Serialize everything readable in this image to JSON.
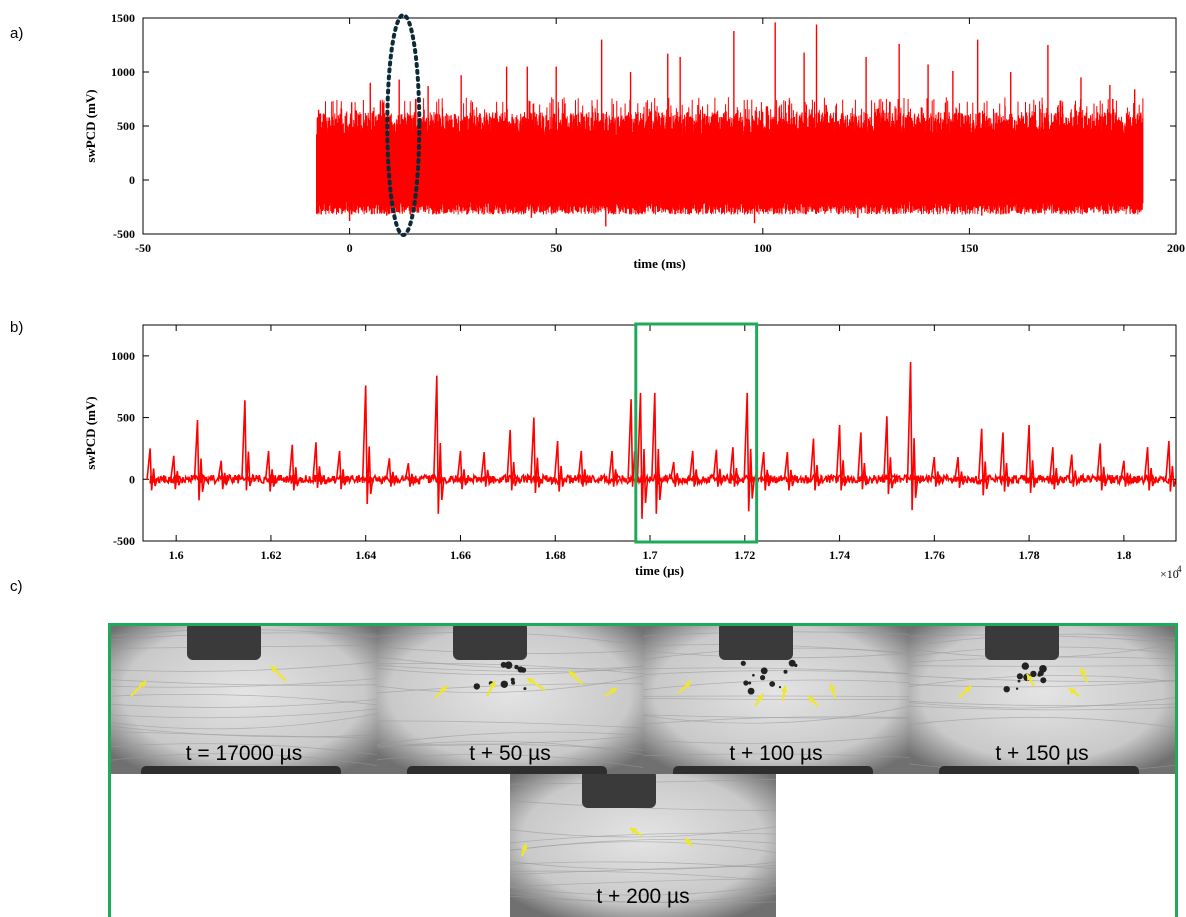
{
  "labels": {
    "a": "a)",
    "b": "b)",
    "c": "c)"
  },
  "chart_data": [
    {
      "type": "line",
      "panel": "a",
      "xlabel": "time (ms)",
      "ylabel": "swPCD (mV)",
      "xlim": [
        -50,
        200
      ],
      "ylim": [
        -500,
        1500
      ],
      "xticks": [
        -50,
        0,
        50,
        100,
        150,
        200
      ],
      "yticks": [
        -500,
        0,
        500,
        1000,
        1500
      ],
      "xtick_labels": [
        "-50",
        "0",
        "50",
        "100",
        "150",
        "200"
      ],
      "ytick_labels": [
        "-500",
        "0",
        "500",
        "1000",
        "1500"
      ],
      "signal_range_x": [
        -8,
        192
      ],
      "baseline_band": [
        -200,
        400
      ],
      "peaks": [
        {
          "x": -7.5,
          "y": 650
        },
        {
          "x": 0.5,
          "y": 720
        },
        {
          "x": 5,
          "y": 900
        },
        {
          "x": 12,
          "y": 930
        },
        {
          "x": 19,
          "y": 870
        },
        {
          "x": 27,
          "y": 970
        },
        {
          "x": 38,
          "y": 1050
        },
        {
          "x": 43,
          "y": 1050
        },
        {
          "x": 50,
          "y": 1050
        },
        {
          "x": 61,
          "y": 1300
        },
        {
          "x": 68,
          "y": 1000
        },
        {
          "x": 77,
          "y": 1170
        },
        {
          "x": 80,
          "y": 1140
        },
        {
          "x": 93,
          "y": 1380
        },
        {
          "x": 103,
          "y": 1460
        },
        {
          "x": 110,
          "y": 1180
        },
        {
          "x": 113,
          "y": 1440
        },
        {
          "x": 125,
          "y": 1140
        },
        {
          "x": 133,
          "y": 1260
        },
        {
          "x": 140,
          "y": 1070
        },
        {
          "x": 146,
          "y": 1010
        },
        {
          "x": 152,
          "y": 1300
        },
        {
          "x": 160,
          "y": 1000
        },
        {
          "x": 169,
          "y": 1250
        },
        {
          "x": 177,
          "y": 950
        },
        {
          "x": 184,
          "y": 880
        },
        {
          "x": 190,
          "y": 840
        }
      ],
      "troughs": [
        {
          "x": 0,
          "y": -380
        },
        {
          "x": 9,
          "y": -330
        },
        {
          "x": 44,
          "y": -350
        },
        {
          "x": 62,
          "y": -430
        },
        {
          "x": 98,
          "y": -400
        },
        {
          "x": 123,
          "y": -350
        },
        {
          "x": 153,
          "y": -330
        },
        {
          "x": 183,
          "y": -280
        }
      ],
      "annotation": {
        "shape": "dashed-ellipse",
        "x": 13,
        "y_range": [
          -500,
          1500
        ],
        "color": "#0d2b36"
      }
    },
    {
      "type": "line",
      "panel": "b",
      "xlabel": "time (μs)",
      "ylabel": "swPCD (mV)",
      "x_multiplier": "×10",
      "x_multiplier_exp": "4",
      "xlim": [
        1.593,
        1.811
      ],
      "ylim": [
        -500,
        1250
      ],
      "xticks": [
        1.6,
        1.62,
        1.64,
        1.66,
        1.68,
        1.7,
        1.72,
        1.74,
        1.76,
        1.78,
        1.8
      ],
      "yticks": [
        -500,
        0,
        500,
        1000
      ],
      "xtick_labels": [
        "1.6",
        "1.62",
        "1.64",
        "1.66",
        "1.68",
        "1.7",
        "1.72",
        "1.74",
        "1.76",
        "1.78",
        "1.8"
      ],
      "ytick_labels": [
        "-500",
        "0",
        "500",
        "1000"
      ],
      "spikes": [
        {
          "x": 1.5945,
          "y": 250,
          "min": -90
        },
        {
          "x": 1.5995,
          "y": 190,
          "min": -80
        },
        {
          "x": 1.6045,
          "y": 480,
          "min": -170
        },
        {
          "x": 1.6095,
          "y": 150,
          "min": -80
        },
        {
          "x": 1.6145,
          "y": 640,
          "min": -90
        },
        {
          "x": 1.6195,
          "y": 230,
          "min": -100
        },
        {
          "x": 1.6245,
          "y": 280,
          "min": -90
        },
        {
          "x": 1.6295,
          "y": 300,
          "min": -70
        },
        {
          "x": 1.6345,
          "y": 230,
          "min": -80
        },
        {
          "x": 1.64,
          "y": 760,
          "min": -200
        },
        {
          "x": 1.645,
          "y": 170,
          "min": -60
        },
        {
          "x": 1.649,
          "y": 130,
          "min": -60
        },
        {
          "x": 1.655,
          "y": 840,
          "min": -280
        },
        {
          "x": 1.66,
          "y": 230,
          "min": -80
        },
        {
          "x": 1.665,
          "y": 220,
          "min": -60
        },
        {
          "x": 1.6705,
          "y": 400,
          "min": -90
        },
        {
          "x": 1.6755,
          "y": 500,
          "min": -110
        },
        {
          "x": 1.6805,
          "y": 310,
          "min": -100
        },
        {
          "x": 1.6855,
          "y": 230,
          "min": -60
        },
        {
          "x": 1.692,
          "y": 230,
          "min": -60
        },
        {
          "x": 1.696,
          "y": 650,
          "min": -60
        },
        {
          "x": 1.698,
          "y": 700,
          "min": -320
        },
        {
          "x": 1.701,
          "y": 700,
          "min": -280
        },
        {
          "x": 1.705,
          "y": 140,
          "min": -60
        },
        {
          "x": 1.709,
          "y": 230,
          "min": -60
        },
        {
          "x": 1.714,
          "y": 240,
          "min": -60
        },
        {
          "x": 1.7175,
          "y": 260,
          "min": -60
        },
        {
          "x": 1.7205,
          "y": 700,
          "min": -260
        },
        {
          "x": 1.724,
          "y": 220,
          "min": -90
        },
        {
          "x": 1.729,
          "y": 220,
          "min": -90
        },
        {
          "x": 1.7345,
          "y": 330,
          "min": -90
        },
        {
          "x": 1.74,
          "y": 440,
          "min": -90
        },
        {
          "x": 1.7445,
          "y": 380,
          "min": -80
        },
        {
          "x": 1.75,
          "y": 510,
          "min": -120
        },
        {
          "x": 1.755,
          "y": 950,
          "min": -250
        },
        {
          "x": 1.76,
          "y": 180,
          "min": -60
        },
        {
          "x": 1.765,
          "y": 180,
          "min": -70
        },
        {
          "x": 1.77,
          "y": 410,
          "min": -130
        },
        {
          "x": 1.7745,
          "y": 380,
          "min": -100
        },
        {
          "x": 1.78,
          "y": 440,
          "min": -110
        },
        {
          "x": 1.785,
          "y": 260,
          "min": -80
        },
        {
          "x": 1.789,
          "y": 200,
          "min": -60
        },
        {
          "x": 1.795,
          "y": 290,
          "min": -90
        },
        {
          "x": 1.8,
          "y": 150,
          "min": -60
        },
        {
          "x": 1.805,
          "y": 260,
          "min": -90
        },
        {
          "x": 1.8095,
          "y": 310,
          "min": -100
        }
      ],
      "highlight_box": {
        "x_range": [
          1.697,
          1.7225
        ],
        "color": "#1faa5a"
      }
    }
  ],
  "frames_panel": {
    "border_color": "#1faa5a",
    "arrow_color": "#f0e62a",
    "frames": [
      {
        "caption": "t = 17000 µs",
        "arrow_count": 2
      },
      {
        "caption": "t + 50 µs",
        "arrow_count": 5
      },
      {
        "caption": "t + 100 µs",
        "arrow_count": 5
      },
      {
        "caption": "t + 150 µs",
        "arrow_count": 4
      },
      {
        "caption": "t + 200 µs",
        "arrow_count": 3
      }
    ]
  }
}
